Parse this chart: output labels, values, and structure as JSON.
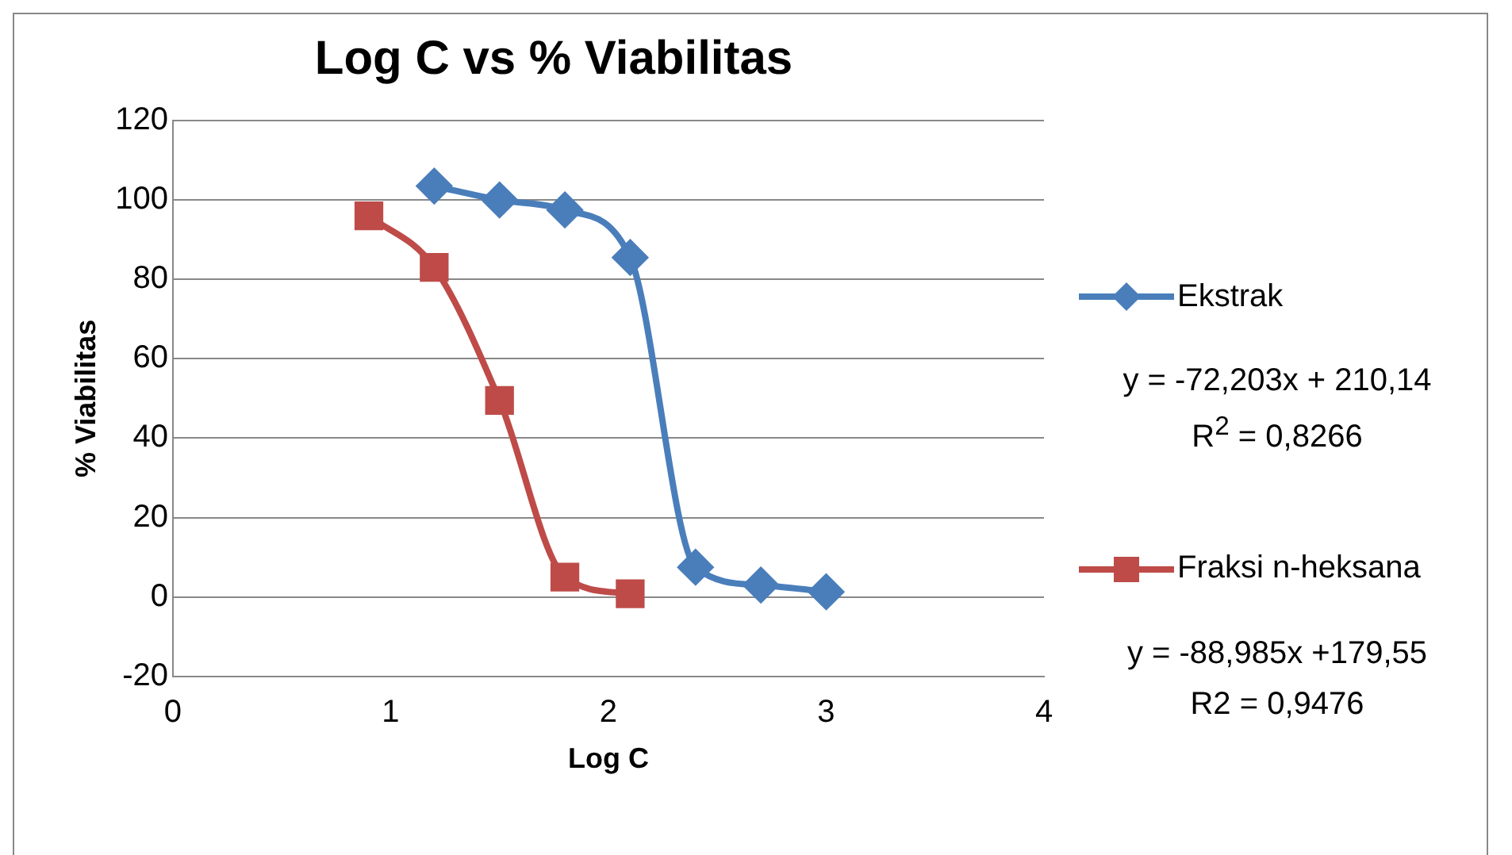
{
  "chart_data": {
    "type": "line",
    "title": "Log C vs % Viabilitas",
    "xlabel": "Log C",
    "ylabel": "% Viabilitas",
    "series": [
      {
        "name": "Ekstrak",
        "color": "#4a7ebb",
        "x": [
          1.2,
          1.5,
          1.8,
          2.1,
          2.4,
          2.7,
          3.0
        ],
        "values": [
          103.5,
          100,
          97.5,
          85.5,
          7.5,
          3,
          1.3
        ],
        "marker": "diamond"
      },
      {
        "name": "Fraksi n-heksana",
        "color": "#be4b48",
        "x": [
          0.9,
          1.2,
          1.5,
          1.8,
          2.1
        ],
        "values": [
          96,
          83,
          49.5,
          5,
          0.8
        ],
        "marker": "square"
      }
    ],
    "xlim": [
      0,
      4
    ],
    "xticks": [
      0,
      1,
      2,
      3,
      4
    ],
    "ylim": [
      -20,
      120
    ],
    "yticks": [
      -20,
      0,
      20,
      40,
      60,
      80,
      100,
      120
    ],
    "grid": "y",
    "legend": "right",
    "annotations": [
      "y = -72,203x + 210,14",
      "R$^{2}$ = 0,8266",
      "y = -88,985x +179,55",
      "R2 = 0,9476"
    ]
  }
}
